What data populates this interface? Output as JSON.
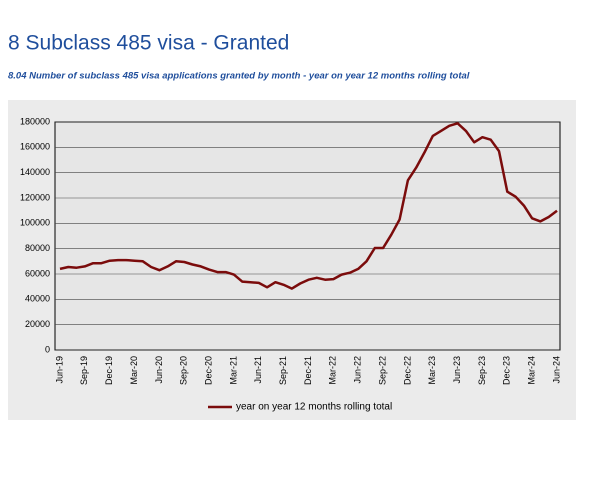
{
  "chart_data": {
    "type": "line",
    "title": "8 Subclass 485 visa - Granted",
    "subtitle": "8.04 Number of subclass 485 visa applications granted by month - year on year 12 months rolling total",
    "categories": [
      "Jun-19",
      null,
      null,
      "Sep-19",
      null,
      null,
      "Dec-19",
      null,
      null,
      "Mar-20",
      null,
      null,
      "Jun-20",
      null,
      null,
      "Sep-20",
      null,
      null,
      "Dec-20",
      null,
      null,
      "Mar-21",
      null,
      null,
      "Jun-21",
      null,
      null,
      "Sep-21",
      null,
      null,
      "Dec-21",
      null,
      null,
      "Mar-22",
      null,
      null,
      "Jun-22",
      null,
      null,
      "Sep-22",
      null,
      null,
      "Dec-22",
      null,
      null,
      "Mar-23",
      null,
      null,
      "Jun-23",
      null,
      null,
      "Sep-23",
      null,
      null,
      "Dec-23",
      null,
      null,
      "Mar-24",
      null,
      null,
      "Jun-24"
    ],
    "series": [
      {
        "name": "year on year 12 months rolling total",
        "color": "#7b0c0c",
        "values": [
          64000,
          65500,
          65000,
          66000,
          68500,
          68500,
          70500,
          71000,
          71000,
          70500,
          70000,
          65500,
          63000,
          66000,
          70000,
          69500,
          67500,
          66000,
          63500,
          61500,
          61500,
          59500,
          54000,
          53500,
          53000,
          49500,
          53500,
          51500,
          48500,
          52500,
          55500,
          57000,
          55500,
          56000,
          59500,
          61000,
          64000,
          70000,
          80500,
          80500,
          91000,
          103000,
          134000,
          144000,
          156000,
          169000,
          173000,
          177000,
          179000,
          173000,
          164000,
          168000,
          166000,
          157000,
          125000,
          121000,
          114000,
          104000,
          101500,
          105000,
          110000
        ]
      }
    ],
    "ylim": [
      0,
      180000
    ],
    "yticks": [
      0,
      20000,
      40000,
      60000,
      80000,
      100000,
      120000,
      140000,
      160000,
      180000
    ],
    "grid": true,
    "legend": "bottom"
  }
}
